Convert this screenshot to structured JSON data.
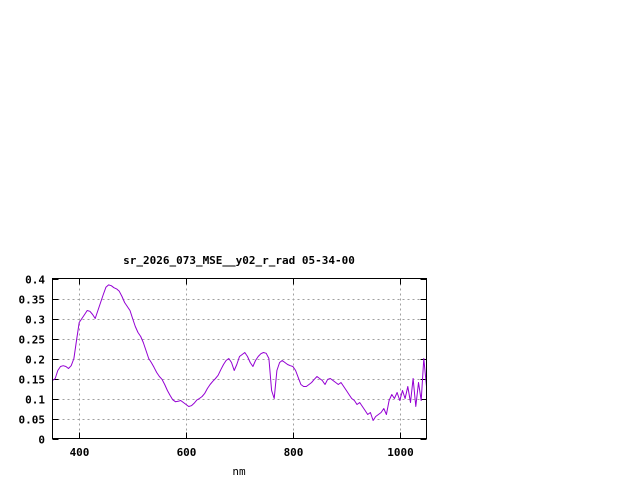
{
  "chart_data": {
    "type": "line",
    "title": "sr_2026_073_MSE__y02_r_rad 05-34-00",
    "xlabel": "nm",
    "ylabel": "",
    "xlim": [
      350,
      1050
    ],
    "ylim": [
      0,
      0.4
    ],
    "grid": true,
    "legend": "none",
    "x_ticks": [
      400,
      600,
      800,
      1000
    ],
    "x_tick_labels": [
      "400",
      "600",
      "800",
      "1000"
    ],
    "y_ticks": [
      0,
      0.05,
      0.1,
      0.15,
      0.2,
      0.25,
      0.3,
      0.35,
      0.4
    ],
    "y_tick_labels": [
      "0",
      "0.05",
      "0.1",
      "0.15",
      "0.2",
      "0.25",
      "0.3",
      "0.35",
      "0.4"
    ],
    "series": [
      {
        "color": "#9400d3",
        "x": [
          350,
          355,
          360,
          365,
          370,
          375,
          380,
          385,
          390,
          395,
          400,
          405,
          410,
          415,
          420,
          425,
          430,
          435,
          440,
          445,
          450,
          455,
          460,
          465,
          470,
          475,
          480,
          485,
          490,
          495,
          500,
          505,
          510,
          515,
          520,
          525,
          530,
          535,
          540,
          545,
          550,
          555,
          560,
          565,
          570,
          575,
          580,
          585,
          590,
          595,
          600,
          605,
          610,
          615,
          620,
          625,
          630,
          635,
          640,
          645,
          650,
          655,
          660,
          665,
          670,
          675,
          680,
          685,
          690,
          695,
          700,
          705,
          710,
          715,
          720,
          725,
          730,
          735,
          740,
          745,
          750,
          755,
          760,
          765,
          770,
          775,
          780,
          785,
          790,
          795,
          800,
          805,
          810,
          815,
          820,
          825,
          830,
          835,
          840,
          845,
          850,
          855,
          860,
          865,
          870,
          875,
          880,
          885,
          890,
          895,
          900,
          905,
          910,
          915,
          920,
          925,
          930,
          935,
          940,
          945,
          950,
          955,
          960,
          965,
          970,
          975,
          980,
          985,
          990,
          995,
          1000,
          1005,
          1010,
          1015,
          1020,
          1025,
          1030,
          1035,
          1040,
          1045,
          1050
        ],
        "y": [
          0.145,
          0.15,
          0.17,
          0.18,
          0.182,
          0.18,
          0.175,
          0.182,
          0.2,
          0.245,
          0.29,
          0.3,
          0.31,
          0.32,
          0.318,
          0.31,
          0.3,
          0.32,
          0.34,
          0.36,
          0.378,
          0.384,
          0.382,
          0.377,
          0.374,
          0.368,
          0.355,
          0.34,
          0.33,
          0.32,
          0.3,
          0.28,
          0.265,
          0.255,
          0.24,
          0.22,
          0.2,
          0.19,
          0.178,
          0.165,
          0.155,
          0.148,
          0.135,
          0.12,
          0.108,
          0.097,
          0.092,
          0.093,
          0.095,
          0.09,
          0.085,
          0.08,
          0.082,
          0.088,
          0.096,
          0.1,
          0.105,
          0.113,
          0.125,
          0.135,
          0.143,
          0.15,
          0.158,
          0.172,
          0.185,
          0.195,
          0.2,
          0.19,
          0.17,
          0.185,
          0.205,
          0.21,
          0.215,
          0.205,
          0.19,
          0.18,
          0.195,
          0.205,
          0.212,
          0.215,
          0.213,
          0.2,
          0.12,
          0.1,
          0.17,
          0.19,
          0.195,
          0.19,
          0.185,
          0.182,
          0.18,
          0.17,
          0.152,
          0.135,
          0.13,
          0.13,
          0.135,
          0.14,
          0.148,
          0.155,
          0.15,
          0.145,
          0.135,
          0.148,
          0.15,
          0.145,
          0.14,
          0.135,
          0.14,
          0.13,
          0.12,
          0.11,
          0.1,
          0.095,
          0.085,
          0.09,
          0.08,
          0.07,
          0.06,
          0.065,
          0.045,
          0.055,
          0.06,
          0.065,
          0.075,
          0.06,
          0.095,
          0.11,
          0.1,
          0.115,
          0.095,
          0.12,
          0.1,
          0.13,
          0.09,
          0.15,
          0.08,
          0.14,
          0.095,
          0.2,
          0.13
        ]
      }
    ]
  }
}
